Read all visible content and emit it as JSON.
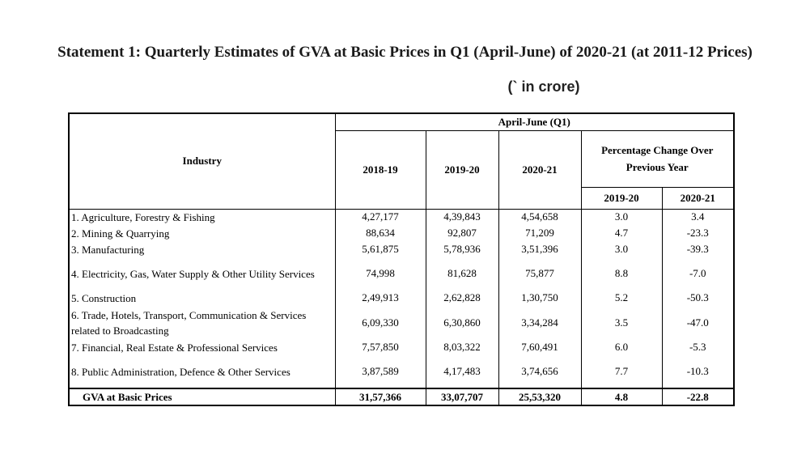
{
  "title": "Statement 1: Quarterly Estimates of GVA at Basic Prices in Q1 (April-June) of 2020-21 (at 2011-12 Prices)",
  "unit": "(` in crore)",
  "table": {
    "industry_header": "Industry",
    "group_header": "April-June (Q1)",
    "year_headers": [
      "2018-19",
      "2019-20",
      "2020-21"
    ],
    "pct_header": "Percentage Change Over Previous Year",
    "pct_sub_headers": [
      "2019-20",
      "2020-21"
    ],
    "rows": [
      {
        "industry": "1. Agriculture, Forestry & Fishing",
        "v1": "4,27,177",
        "v2": "4,39,843",
        "v3": "4,54,658",
        "p1": "3.0",
        "p2": "3.4"
      },
      {
        "industry": "2. Mining & Quarrying",
        "v1": "88,634",
        "v2": "92,807",
        "v3": "71,209",
        "p1": "4.7",
        "p2": "-23.3"
      },
      {
        "industry": "3. Manufacturing",
        "v1": "5,61,875",
        "v2": "5,78,936",
        "v3": "3,51,396",
        "p1": "3.0",
        "p2": "-39.3"
      },
      {
        "industry": "4. Electricity, Gas, Water Supply & Other Utility Services",
        "v1": "74,998",
        "v2": "81,628",
        "v3": "75,877",
        "p1": "8.8",
        "p2": "-7.0"
      },
      {
        "industry": "5. Construction",
        "v1": "2,49,913",
        "v2": "2,62,828",
        "v3": "1,30,750",
        "p1": "5.2",
        "p2": "-50.3"
      },
      {
        "industry": "6. Trade, Hotels, Transport, Communication & Services related to Broadcasting",
        "v1": "6,09,330",
        "v2": "6,30,860",
        "v3": "3,34,284",
        "p1": "3.5",
        "p2": "-47.0"
      },
      {
        "industry": "7. Financial, Real Estate & Professional Services",
        "v1": "7,57,850",
        "v2": "8,03,322",
        "v3": "7,60,491",
        "p1": "6.0",
        "p2": "-5.3"
      },
      {
        "industry": "8. Public Administration, Defence & Other Services",
        "v1": "3,87,589",
        "v2": "4,17,483",
        "v3": "3,74,656",
        "p1": "7.7",
        "p2": "-10.3"
      }
    ],
    "total": {
      "industry": "GVA at Basic Prices",
      "v1": "31,57,366",
      "v2": "33,07,707",
      "v3": "25,53,320",
      "p1": "4.8",
      "p2": "-22.8"
    }
  }
}
